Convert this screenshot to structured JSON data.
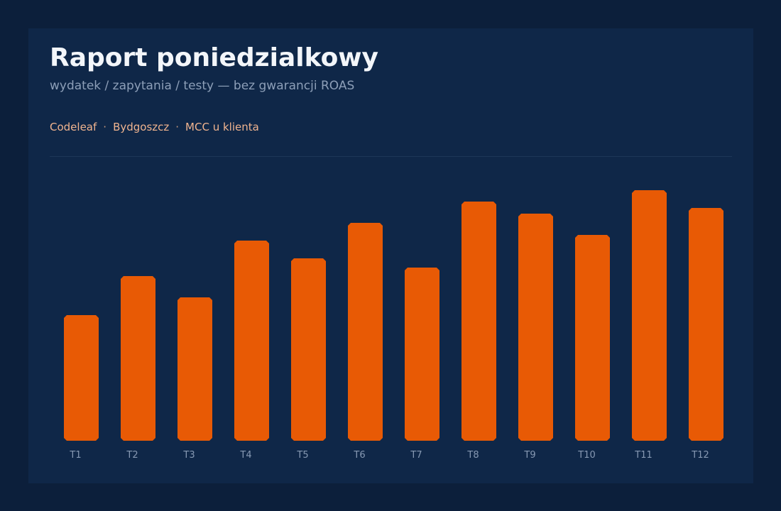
{
  "report": {
    "title": "Raport poniedzialkowy",
    "subtitle": "wydatek / zapytania / testy — bez gwarancji ROAS",
    "tags": [
      "Codeleaf",
      "Bydgoszcz",
      "MCC u klienta"
    ],
    "tag_separator": "·"
  },
  "colors": {
    "background": "#0c1f3b",
    "panel": "#0f2748",
    "bar": "#e85a05",
    "title": "#f3f6fa",
    "subtitle": "#8d9fb8",
    "tags": "#f0b48f",
    "tick_label": "#8799b3"
  },
  "chart_data": {
    "type": "bar",
    "title": "",
    "xlabel": "",
    "ylabel": "",
    "categories": [
      "T1",
      "T2",
      "T3",
      "T4",
      "T5",
      "T6",
      "T7",
      "T8",
      "T9",
      "T10",
      "T11",
      "T12"
    ],
    "values": [
      177,
      232,
      202,
      282,
      257,
      307,
      244,
      337,
      320,
      290,
      353,
      328
    ],
    "ylim": [
      0,
      353
    ],
    "grid": false,
    "legend": "none"
  }
}
